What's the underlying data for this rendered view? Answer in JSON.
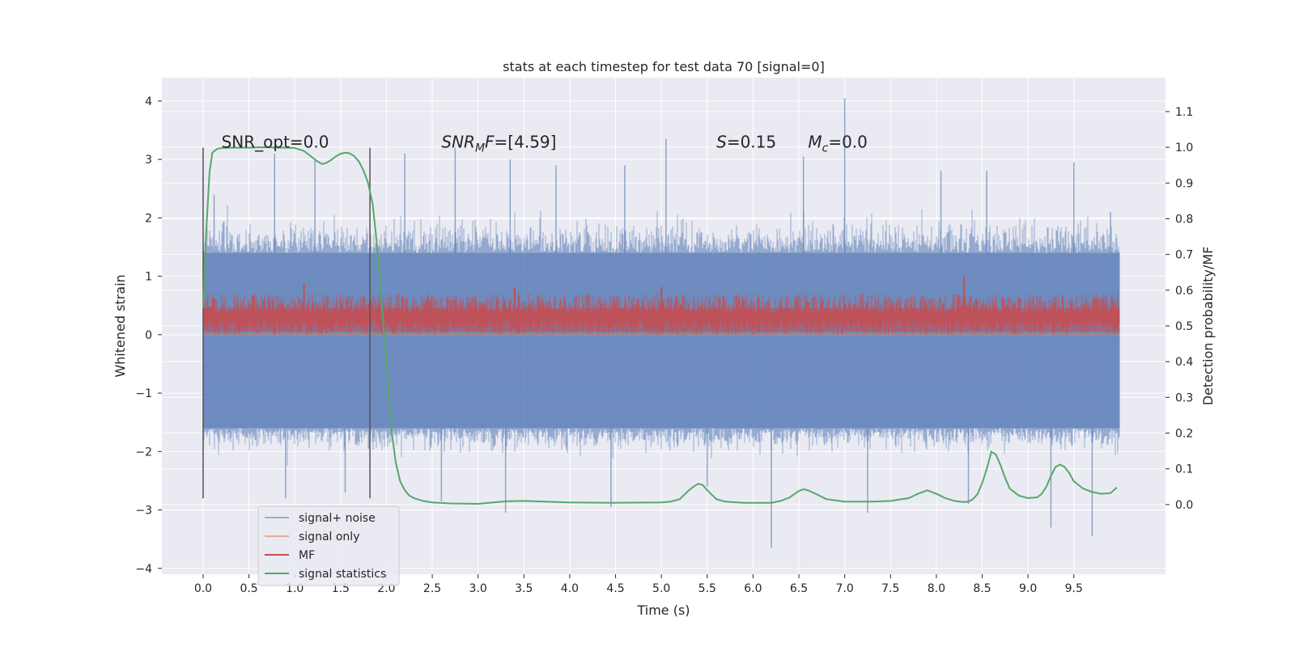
{
  "chart_data": {
    "type": "line",
    "title": "stats at each timestep for test data 70 [signal=0]",
    "xlabel": "Time (s)",
    "ylabel": "Whitened strain",
    "y2label": "Detection probability/MF",
    "xlim": [
      -0.45,
      10.5
    ],
    "ylim": [
      -4.1,
      4.4
    ],
    "y2lim": [
      -0.195,
      1.195
    ],
    "x_ticks": [
      0.0,
      0.5,
      1.0,
      1.5,
      2.0,
      2.5,
      3.0,
      3.5,
      4.0,
      4.5,
      5.0,
      5.5,
      6.0,
      6.5,
      7.0,
      7.5,
      8.0,
      8.5,
      9.0,
      9.5
    ],
    "x_tick_labels": [
      "0.0",
      "0.5",
      "1.0",
      "1.5",
      "2.0",
      "2.5",
      "3.0",
      "3.5",
      "4.0",
      "4.5",
      "5.0",
      "5.5",
      "6.0",
      "6.5",
      "7.0",
      "7.5",
      "8.0",
      "8.5",
      "9.0",
      "9.5"
    ],
    "y_ticks": [
      4,
      3,
      2,
      1,
      0,
      -1,
      -2,
      -3,
      -4
    ],
    "y_tick_labels": [
      "4",
      "3",
      "2",
      "1",
      "0",
      "−1",
      "−2",
      "−3",
      "−4"
    ],
    "y2_ticks": [
      1.1,
      1.0,
      0.9,
      0.8,
      0.7,
      0.6,
      0.5,
      0.4,
      0.3,
      0.2,
      0.1,
      0.0
    ],
    "y2_tick_labels": [
      "1.1",
      "1.0",
      "0.9",
      "0.8",
      "0.7",
      "0.6",
      "0.5",
      "0.4",
      "0.3",
      "0.2",
      "0.1",
      "0.0"
    ],
    "grid": true,
    "legend_position": "lower-left",
    "colors": {
      "plot_bg": "#EAEAF2",
      "grid": "#FFFFFF",
      "noise": "#4C72B0",
      "signal": "#DD8452",
      "mf": "#C44E52",
      "stat": "#55A868",
      "vline": "#555555"
    },
    "vertical_lines": [
      0.0,
      1.82
    ],
    "vline_range": [
      -2.8,
      3.2
    ],
    "annotations": [
      {
        "parts": [
          {
            "t": "SNR_opt=0.0"
          }
        ],
        "x": 0.2,
        "y": 3.2
      },
      {
        "parts": [
          {
            "t": "SNR",
            "i": true
          },
          {
            "t": "M",
            "i": true,
            "sub": true
          },
          {
            "t": "F",
            "i": true
          },
          {
            "t": "=[4.59]"
          }
        ],
        "x": 2.6,
        "y": 3.2
      },
      {
        "parts": [
          {
            "t": "S",
            "i": true
          },
          {
            "t": "=0.15"
          }
        ],
        "x": 5.6,
        "y": 3.2
      },
      {
        "parts": [
          {
            "t": "M",
            "i": true
          },
          {
            "t": "c",
            "i": true,
            "sub": true
          },
          {
            "t": "=0.0"
          }
        ],
        "x": 6.6,
        "y": 3.2
      }
    ],
    "noise_spikes": [
      {
        "x": 0.12,
        "y": 2.4
      },
      {
        "x": 0.78,
        "y": 3.1
      },
      {
        "x": 1.22,
        "y": 3.0
      },
      {
        "x": 2.2,
        "y": 3.1
      },
      {
        "x": 2.75,
        "y": 3.2
      },
      {
        "x": 3.35,
        "y": 3.0
      },
      {
        "x": 3.85,
        "y": 2.9
      },
      {
        "x": 4.6,
        "y": 2.9
      },
      {
        "x": 5.05,
        "y": 3.35
      },
      {
        "x": 6.55,
        "y": 3.05
      },
      {
        "x": 7.0,
        "y": 4.05
      },
      {
        "x": 8.05,
        "y": 2.8
      },
      {
        "x": 8.55,
        "y": 2.8
      },
      {
        "x": 9.5,
        "y": 2.95
      },
      {
        "x": 9.9,
        "y": 2.1
      },
      {
        "x": 3.3,
        "y": -3.05
      },
      {
        "x": 4.45,
        "y": -2.95
      },
      {
        "x": 6.2,
        "y": -3.65
      },
      {
        "x": 7.25,
        "y": -3.05
      },
      {
        "x": 8.35,
        "y": -2.9
      },
      {
        "x": 9.25,
        "y": -3.3
      },
      {
        "x": 9.7,
        "y": -3.45
      },
      {
        "x": 2.6,
        "y": -2.85
      },
      {
        "x": 0.9,
        "y": -2.8
      },
      {
        "x": 1.55,
        "y": -2.7
      },
      {
        "x": 5.5,
        "y": -2.6
      }
    ],
    "mf_spikes": [
      {
        "x": 1.1,
        "y": 0.88
      },
      {
        "x": 5.0,
        "y": 0.82
      },
      {
        "x": 8.3,
        "y": 1.0
      },
      {
        "x": 3.4,
        "y": 0.8
      }
    ],
    "series": [
      {
        "name": "signal+ noise",
        "style": "noise_band",
        "x_range": [
          0.0,
          10.0
        ],
        "core": [
          -1.6,
          1.4
        ],
        "extreme": [
          -2.3,
          2.4
        ]
      },
      {
        "name": "signal only",
        "style": "flat",
        "x_range": [
          0.0,
          10.0
        ],
        "y": 0.0
      },
      {
        "name": "MF",
        "style": "mf_band",
        "x_range": [
          0.0,
          10.0
        ],
        "core": [
          0.0,
          0.55
        ],
        "extreme": [
          -0.05,
          0.75
        ]
      },
      {
        "name": "signal statistics",
        "style": "line",
        "axis": "right",
        "x": [
          0.0,
          0.03,
          0.07,
          0.1,
          0.15,
          0.2,
          0.3,
          0.4,
          0.5,
          0.6,
          0.7,
          0.8,
          0.9,
          1.0,
          1.1,
          1.2,
          1.25,
          1.3,
          1.35,
          1.4,
          1.45,
          1.5,
          1.55,
          1.6,
          1.65,
          1.7,
          1.75,
          1.8,
          1.85,
          1.9,
          1.95,
          2.0,
          2.03,
          2.06,
          2.1,
          2.15,
          2.2,
          2.25,
          2.3,
          2.4,
          2.5,
          2.7,
          3.0,
          3.3,
          3.5,
          4.0,
          4.5,
          5.0,
          5.1,
          5.2,
          5.3,
          5.35,
          5.4,
          5.45,
          5.5,
          5.6,
          5.7,
          5.9,
          6.0,
          6.2,
          6.3,
          6.4,
          6.5,
          6.55,
          6.6,
          6.7,
          6.8,
          7.0,
          7.3,
          7.5,
          7.7,
          7.8,
          7.85,
          7.9,
          8.0,
          8.1,
          8.2,
          8.3,
          8.35,
          8.4,
          8.45,
          8.5,
          8.55,
          8.6,
          8.65,
          8.7,
          8.75,
          8.8,
          8.9,
          9.0,
          9.1,
          9.15,
          9.2,
          9.25,
          9.3,
          9.35,
          9.4,
          9.45,
          9.5,
          9.6,
          9.7,
          9.8,
          9.9,
          9.97
        ],
        "y": [
          0.55,
          0.75,
          0.93,
          0.985,
          0.995,
          0.998,
          0.999,
          0.999,
          0.999,
          1.0,
          1.0,
          0.999,
          0.999,
          0.998,
          0.99,
          0.97,
          0.96,
          0.953,
          0.957,
          0.965,
          0.975,
          0.982,
          0.985,
          0.983,
          0.975,
          0.96,
          0.935,
          0.9,
          0.84,
          0.72,
          0.56,
          0.4,
          0.29,
          0.2,
          0.12,
          0.065,
          0.04,
          0.025,
          0.018,
          0.01,
          0.006,
          0.003,
          0.002,
          0.009,
          0.01,
          0.006,
          0.005,
          0.006,
          0.008,
          0.015,
          0.04,
          0.05,
          0.058,
          0.055,
          0.04,
          0.015,
          0.008,
          0.005,
          0.005,
          0.005,
          0.01,
          0.02,
          0.038,
          0.043,
          0.04,
          0.028,
          0.015,
          0.008,
          0.008,
          0.01,
          0.018,
          0.03,
          0.035,
          0.04,
          0.03,
          0.018,
          0.01,
          0.007,
          0.008,
          0.015,
          0.03,
          0.06,
          0.1,
          0.148,
          0.14,
          0.11,
          0.075,
          0.045,
          0.025,
          0.018,
          0.02,
          0.03,
          0.05,
          0.08,
          0.105,
          0.112,
          0.105,
          0.088,
          0.065,
          0.045,
          0.035,
          0.03,
          0.032,
          0.048
        ]
      }
    ]
  }
}
